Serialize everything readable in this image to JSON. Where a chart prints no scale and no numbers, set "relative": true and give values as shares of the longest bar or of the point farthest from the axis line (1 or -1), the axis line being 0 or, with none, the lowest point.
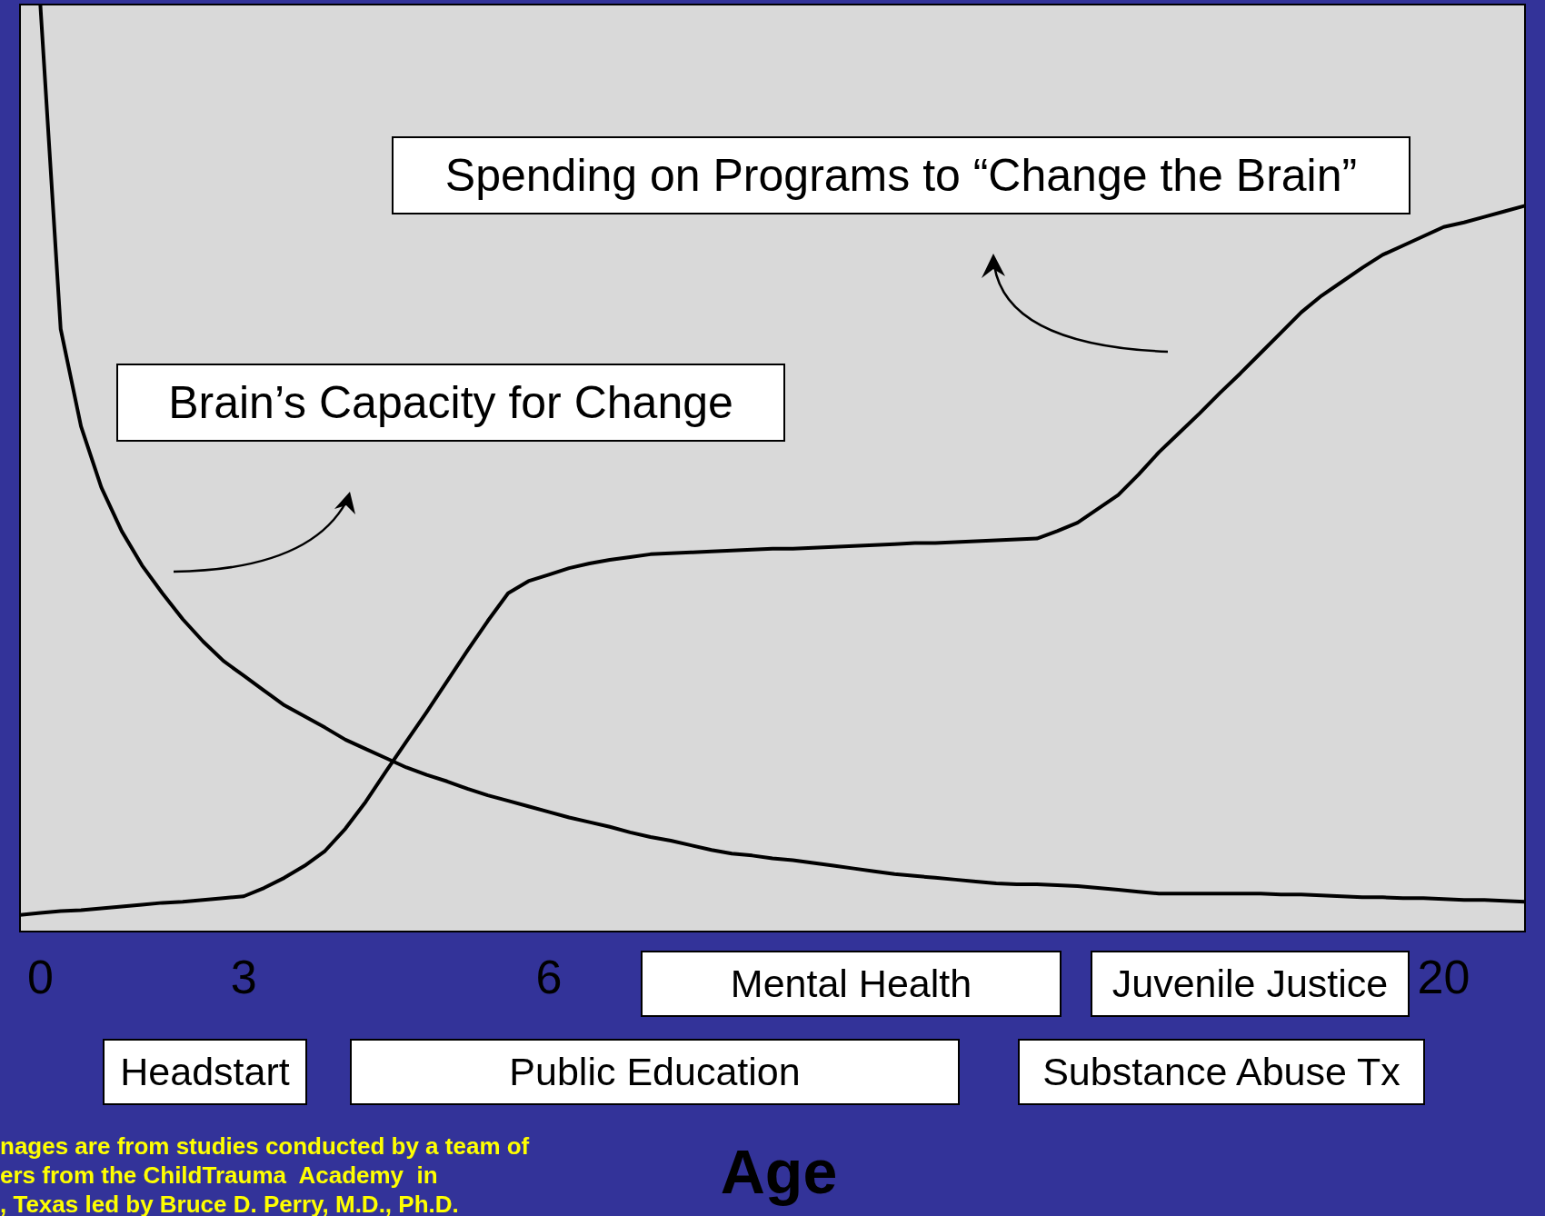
{
  "chart_data": {
    "type": "line",
    "relative": true,
    "xlabel": "Age",
    "legend": false,
    "marker": "none",
    "categories": [
      null,
      "0",
      null,
      null,
      null,
      null,
      null,
      null,
      null,
      null,
      null,
      "3",
      null,
      null,
      null,
      null,
      null,
      null,
      null,
      null,
      null,
      null,
      null,
      null,
      null,
      null,
      "6",
      null,
      null,
      null,
      null,
      null,
      null,
      null,
      null,
      null,
      null,
      null,
      null,
      null,
      null,
      null,
      null,
      null,
      null,
      null,
      null,
      null,
      null,
      null,
      null,
      null,
      null,
      null,
      null,
      null,
      null,
      null,
      null,
      null,
      null,
      null,
      null,
      null,
      null,
      null,
      null,
      null,
      null,
      null,
      "20",
      null,
      null,
      null,
      null
    ],
    "series": [
      {
        "name": "Brain’s Capacity for Change",
        "color": "#000000",
        "values": [
          null,
          1.0,
          0.65,
          0.545,
          0.479,
          0.432,
          0.395,
          0.365,
          0.337,
          0.313,
          0.292,
          0.276,
          0.26,
          0.244,
          0.232,
          0.22,
          0.207,
          0.197,
          0.187,
          0.177,
          0.169,
          0.162,
          0.154,
          0.147,
          0.141,
          0.135,
          0.129,
          0.123,
          0.118,
          0.113,
          0.107,
          0.102,
          0.098,
          0.093,
          0.088,
          0.084,
          0.082,
          0.079,
          0.077,
          0.074,
          0.071,
          0.068,
          0.065,
          0.062,
          0.06,
          0.058,
          0.056,
          0.054,
          0.052,
          0.051,
          0.051,
          0.05,
          0.049,
          0.047,
          0.045,
          0.043,
          0.041,
          0.041,
          0.041,
          0.041,
          0.041,
          0.041,
          0.04,
          0.04,
          0.039,
          0.038,
          0.037,
          0.037,
          0.036,
          0.036,
          0.035,
          0.034,
          0.034,
          0.033,
          0.032
        ]
      },
      {
        "name": "Spending on Programs to “Change the Brain”",
        "color": "#000000",
        "values": [
          0.018,
          0.02,
          0.022,
          0.023,
          0.025,
          0.027,
          0.029,
          0.031,
          0.032,
          0.034,
          0.036,
          0.038,
          0.047,
          0.058,
          0.071,
          0.087,
          0.111,
          0.14,
          0.173,
          0.205,
          0.237,
          0.27,
          0.303,
          0.335,
          0.365,
          0.378,
          0.385,
          0.392,
          0.397,
          0.401,
          0.404,
          0.407,
          0.408,
          0.409,
          0.41,
          0.411,
          0.412,
          0.413,
          0.413,
          0.414,
          0.415,
          0.416,
          0.417,
          0.418,
          0.419,
          0.419,
          0.42,
          0.421,
          0.422,
          0.423,
          0.424,
          0.432,
          0.441,
          0.456,
          0.471,
          0.493,
          0.517,
          0.538,
          0.559,
          0.581,
          0.602,
          0.624,
          0.646,
          0.668,
          0.686,
          0.701,
          0.716,
          0.73,
          0.74,
          0.75,
          0.76,
          0.765,
          0.771,
          0.777,
          0.783
        ]
      }
    ],
    "annotations": [
      "Mental Health",
      "Juvenile Justice",
      "Headstart",
      "Public Education",
      "Substance Abuse Tx",
      "nages are from studies conducted by a team of",
      "ers from the ChildTrauma  Academy  in",
      ", Texas led by Bruce D. Perry, M.D., Ph.D."
    ]
  }
}
